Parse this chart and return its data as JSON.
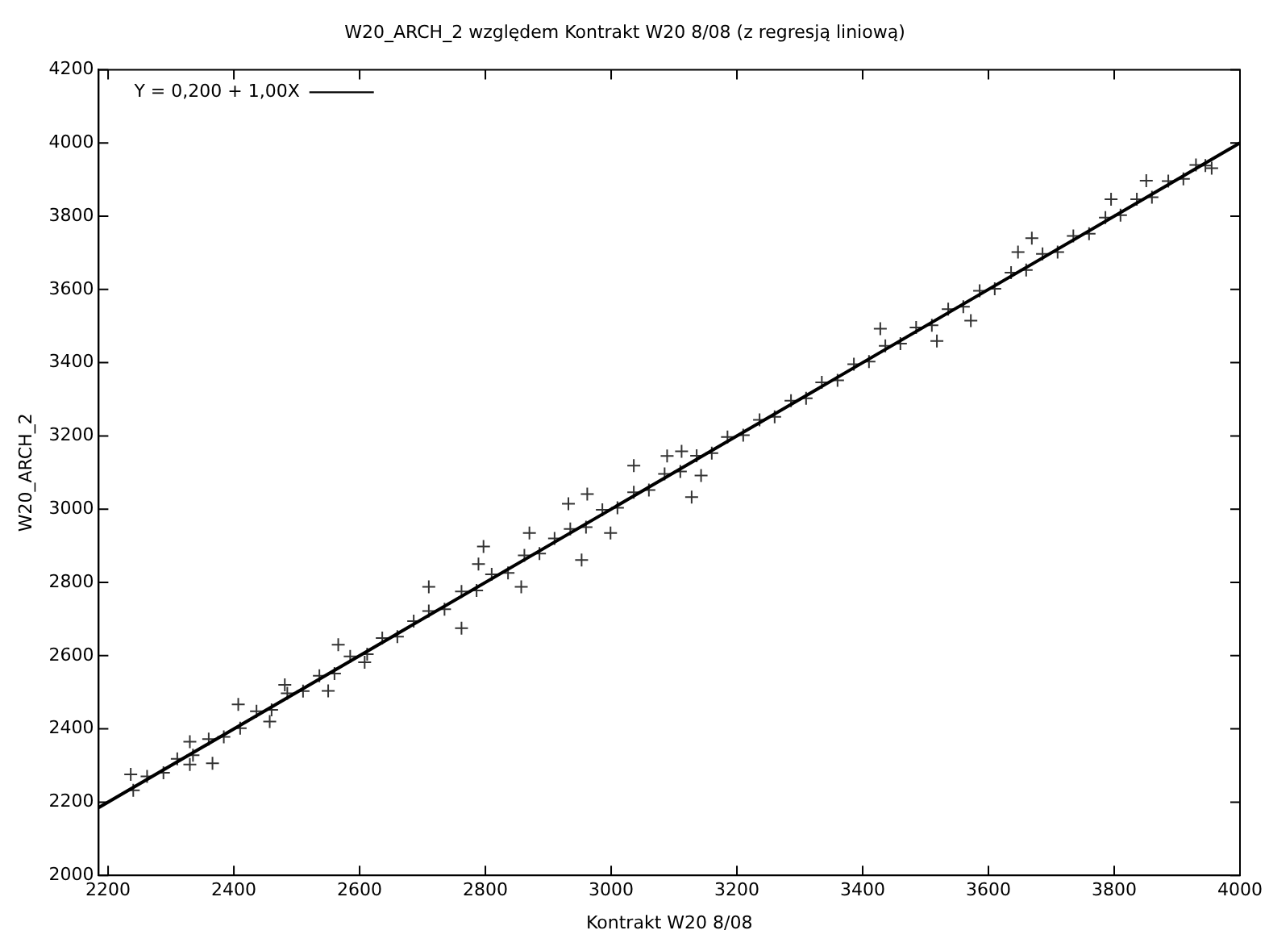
{
  "chart_data": {
    "type": "scatter",
    "title": "W20_ARCH_2 względem Kontrakt W20 8/08 (z regresją liniową)",
    "xlabel": "Kontrakt W20 8/08",
    "ylabel": "W20_ARCH_2",
    "xlim": [
      2185,
      4000
    ],
    "ylim": [
      2000,
      4200
    ],
    "xticks": [
      2200,
      2400,
      2600,
      2800,
      3000,
      3200,
      3400,
      3600,
      3800,
      4000
    ],
    "yticks": [
      2000,
      2200,
      2400,
      2600,
      2800,
      3000,
      3200,
      3400,
      3600,
      3800,
      4000,
      4200
    ],
    "grid": false,
    "legend": "top left",
    "series": [
      {
        "marker": "cross",
        "color": "#333333",
        "x": [
          2236,
          2330,
          2330,
          2366,
          2407,
          2457,
          2481,
          2550,
          2566,
          2608,
          2762,
          2710,
          2797,
          2789,
          2857,
          2870,
          2953,
          2962,
          2932,
          2999,
          3036,
          3089,
          3112,
          3128,
          3143,
          3428,
          3518,
          3572,
          3647,
          3669,
          3795,
          3851,
          3955,
          2240,
          2262,
          2288,
          2310,
          2335,
          2360,
          2384,
          2410,
          2436,
          2460,
          2485,
          2510,
          2536,
          2560,
          2585,
          2612,
          2636,
          2660,
          2686,
          2710,
          2735,
          2762,
          2786,
          2810,
          2836,
          2862,
          2886,
          2910,
          2935,
          2960,
          2986,
          3010,
          3036,
          3060,
          3085,
          3110,
          3136,
          3160,
          3185,
          3210,
          3236,
          3260,
          3286,
          3310,
          3335,
          3360,
          3386,
          3410,
          3436,
          3460,
          3485,
          3510,
          3536,
          3560,
          3586,
          3610,
          3636,
          3660,
          3686,
          3710,
          3735,
          3760,
          3786,
          3810,
          3836,
          3860,
          3886,
          3910,
          3930,
          3945
        ],
        "values": [
          2276,
          2365,
          2303,
          2306,
          2467,
          2420,
          2520,
          2504,
          2630,
          2582,
          2675,
          2788,
          2898,
          2850,
          2788,
          2935,
          2861,
          3041,
          3015,
          2935,
          3119,
          3145,
          3158,
          3033,
          3092,
          3493,
          3459,
          3515,
          3702,
          3740,
          3846,
          3897,
          3931,
          2232,
          2270,
          2280,
          2318,
          2328,
          2372,
          2378,
          2402,
          2448,
          2452,
          2497,
          2503,
          2545,
          2551,
          2598,
          2604,
          2648,
          2652,
          2694,
          2722,
          2727,
          2775,
          2778,
          2822,
          2826,
          2874,
          2879,
          2920,
          2946,
          2951,
          2998,
          3004,
          3046,
          3052,
          3096,
          3103,
          3146,
          3153,
          3197,
          3202,
          3244,
          3252,
          3296,
          3303,
          3346,
          3352,
          3396,
          3403,
          3446,
          3452,
          3496,
          3502,
          3546,
          3553,
          3596,
          3602,
          3646,
          3653,
          3697,
          3702,
          3746,
          3752,
          3796,
          3803,
          3846,
          3852,
          3896,
          3902,
          3940,
          3938
        ]
      },
      {
        "type": "line",
        "marker": "none",
        "name": "Y = 0,200 + 1,00X",
        "color": "#000000",
        "x": [
          2185,
          4000
        ],
        "values": [
          2185,
          4000
        ]
      }
    ]
  }
}
